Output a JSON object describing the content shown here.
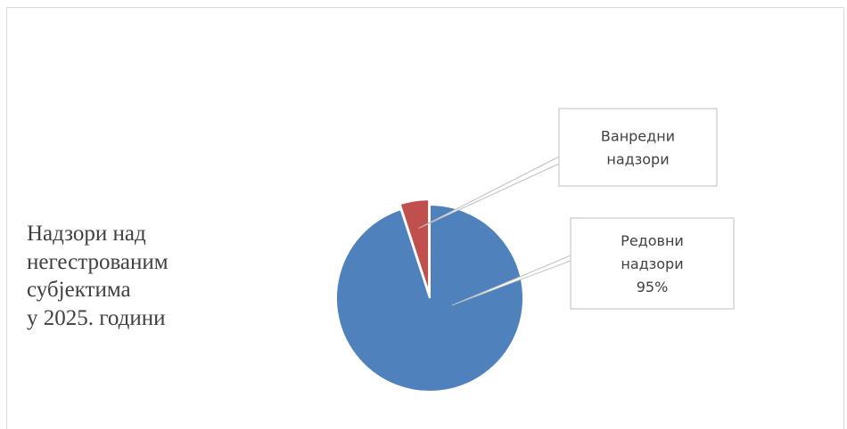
{
  "chart_data": {
    "type": "pie",
    "title_lines": [
      "Надзори над",
      "негестрованим",
      "субјектима",
      "у 2025.  години"
    ],
    "slices": [
      {
        "name": "Редовни надзори",
        "value": 95,
        "label_lines": [
          "Редовни",
          "надзори",
          "95%"
        ],
        "color": "#4f81bd"
      },
      {
        "name": "Ванредни надзори",
        "value": 5,
        "label_lines": [
          "Ванредни",
          "надзори"
        ],
        "color": "#c0504d"
      }
    ],
    "legend": "none"
  }
}
